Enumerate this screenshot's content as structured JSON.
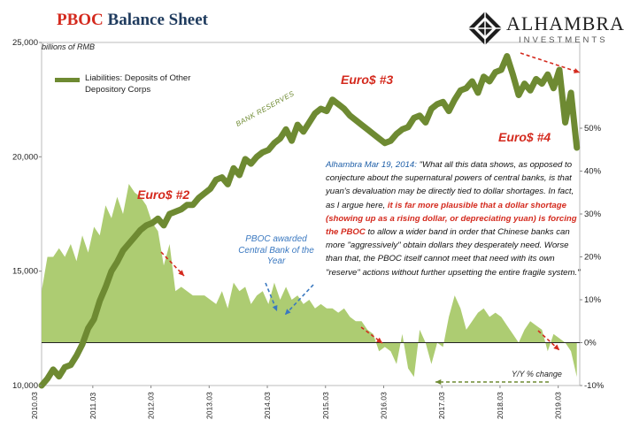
{
  "header": {
    "title_accent": "PBOC",
    "title_rest": " Balance Sheet",
    "logo_name": "ALHAMBRA",
    "logo_sub": "INVESTMENTS"
  },
  "chart_data": {
    "type": "line",
    "title": "PBOC Balance Sheet",
    "units": "billions of RMB",
    "left_axis": {
      "ylim": [
        10000,
        25000
      ],
      "ticks": [
        "10,000",
        "15,000",
        "20,000",
        "25,000"
      ]
    },
    "right_axis": {
      "label": "Y/Y % change",
      "ylim": [
        -10,
        70
      ],
      "ticks": [
        "-10%",
        "0%",
        "10%",
        "20%",
        "30%",
        "40%",
        "50%"
      ]
    },
    "x_ticks": [
      "2010.03",
      "2011.03",
      "2012.03",
      "2013.03",
      "2014.03",
      "2015.03",
      "2016.03",
      "2017.03",
      "2018.03",
      "2019.03"
    ],
    "x_range": [
      2010.0,
      2019.25
    ],
    "series": [
      {
        "name": "Liabilities: Deposits of Other Depository Corps",
        "axis": "left",
        "type": "line",
        "x": [
          2010.0,
          2010.1,
          2010.2,
          2010.3,
          2010.4,
          2010.5,
          2010.6,
          2010.7,
          2010.8,
          2010.9,
          2011.0,
          2011.1,
          2011.2,
          2011.3,
          2011.4,
          2011.5,
          2011.6,
          2011.7,
          2011.8,
          2011.9,
          2012.0,
          2012.1,
          2012.2,
          2012.3,
          2012.4,
          2012.5,
          2012.6,
          2012.7,
          2012.8,
          2012.9,
          2013.0,
          2013.1,
          2013.2,
          2013.3,
          2013.4,
          2013.5,
          2013.6,
          2013.7,
          2013.8,
          2013.9,
          2014.0,
          2014.1,
          2014.2,
          2014.3,
          2014.4,
          2014.5,
          2014.6,
          2014.7,
          2014.8,
          2014.9,
          2015.0,
          2015.1,
          2015.2,
          2015.3,
          2015.4,
          2015.5,
          2015.6,
          2015.7,
          2015.8,
          2015.9,
          2016.0,
          2016.1,
          2016.2,
          2016.3,
          2016.4,
          2016.5,
          2016.6,
          2016.7,
          2016.8,
          2016.9,
          2017.0,
          2017.1,
          2017.2,
          2017.3,
          2017.4,
          2017.5,
          2017.6,
          2017.7,
          2017.8,
          2017.9,
          2018.0,
          2018.1,
          2018.2,
          2018.3,
          2018.4,
          2018.5,
          2018.6,
          2018.7,
          2018.8,
          2018.9,
          2019.0,
          2019.1,
          2019.2
        ],
        "values": [
          10000,
          10300,
          10700,
          10400,
          10800,
          10900,
          11300,
          11800,
          12500,
          12900,
          13700,
          14300,
          15000,
          15400,
          15900,
          16200,
          16500,
          16800,
          17000,
          17100,
          17300,
          17000,
          17500,
          17600,
          17700,
          17900,
          17900,
          18200,
          18400,
          18600,
          19000,
          19100,
          18800,
          19500,
          19200,
          19900,
          19700,
          20000,
          20200,
          20300,
          20600,
          20800,
          21200,
          20700,
          21400,
          21100,
          21500,
          21900,
          22100,
          22000,
          22500,
          22300,
          22100,
          21800,
          21600,
          21400,
          21200,
          21000,
          20800,
          20600,
          20700,
          21000,
          21200,
          21300,
          21700,
          21800,
          21500,
          22100,
          22300,
          22400,
          22000,
          22500,
          22900,
          23000,
          23300,
          22800,
          23500,
          23300,
          23700,
          23800,
          24400,
          23600,
          22700,
          23200,
          22900,
          23400,
          23200,
          23600,
          23000,
          23800,
          21500,
          22800,
          20400
        ]
      },
      {
        "name": "Y/Y % change",
        "axis": "right",
        "type": "area",
        "x": [
          2010.0,
          2010.1,
          2010.2,
          2010.3,
          2010.4,
          2010.5,
          2010.6,
          2010.7,
          2010.8,
          2010.9,
          2011.0,
          2011.1,
          2011.2,
          2011.3,
          2011.4,
          2011.5,
          2011.6,
          2011.7,
          2011.8,
          2011.9,
          2012.0,
          2012.1,
          2012.2,
          2012.3,
          2012.4,
          2012.5,
          2012.6,
          2012.7,
          2012.8,
          2012.9,
          2013.0,
          2013.1,
          2013.2,
          2013.3,
          2013.4,
          2013.5,
          2013.6,
          2013.7,
          2013.8,
          2013.9,
          2014.0,
          2014.1,
          2014.2,
          2014.3,
          2014.4,
          2014.5,
          2014.6,
          2014.7,
          2014.8,
          2014.9,
          2015.0,
          2015.1,
          2015.2,
          2015.3,
          2015.4,
          2015.5,
          2015.6,
          2015.7,
          2015.8,
          2015.9,
          2016.0,
          2016.1,
          2016.2,
          2016.3,
          2016.4,
          2016.5,
          2016.6,
          2016.7,
          2016.8,
          2016.9,
          2017.0,
          2017.1,
          2017.2,
          2017.3,
          2017.4,
          2017.5,
          2017.6,
          2017.7,
          2017.8,
          2017.9,
          2018.0,
          2018.1,
          2018.2,
          2018.3,
          2018.4,
          2018.5,
          2018.6,
          2018.7,
          2018.8,
          2018.9,
          2019.0,
          2019.1,
          2019.2
        ],
        "values": [
          12,
          20,
          20,
          22,
          20,
          23,
          19,
          25,
          21,
          27,
          25,
          32,
          29,
          34,
          30,
          37,
          35,
          34,
          32,
          28,
          26,
          18,
          23,
          12,
          13,
          12,
          11,
          11,
          11,
          10,
          9,
          12,
          8,
          14,
          12,
          13,
          9,
          11,
          12,
          9,
          14,
          10,
          13,
          10,
          11,
          9,
          10,
          8,
          9,
          8,
          8,
          7,
          8,
          6,
          5,
          5,
          3,
          2,
          -2,
          -1,
          -2,
          -5,
          2,
          -6,
          -8,
          3,
          0,
          -5,
          0,
          -1,
          6,
          11,
          8,
          3,
          5,
          7,
          8,
          6,
          7,
          6,
          4,
          2,
          0,
          3,
          5,
          4,
          3,
          -2,
          2,
          1,
          0,
          -2,
          -8
        ]
      }
    ],
    "legend": [
      "Liabilities: Deposits of Other Depository Corps"
    ],
    "annotations": {
      "euro2": "Euro$ #2",
      "euro3": "Euro$ #3",
      "euro4": "Euro$ #4",
      "bank_reserves": "BANK RESERVES",
      "callout": "PBOC awarded Central Bank of the Year",
      "quote_source": "Alhambra Mar 19, 2014:",
      "quote_part1": " \"What all this data shows, as opposed to conjecture about the supernatural powers of central banks, is that yuan's devaluation may be directly tied to dollar shortages. In fact, as I argue here, ",
      "quote_highlight": "it is far more plausible that a dollar shortage (showing up as a rising dollar, or depreciating  yuan) is forcing the PBOC",
      "quote_part2": " to allow a wider band in order that Chinese banks can more \"aggressively\" obtain dollars they desperately need. Worse than that, the PBOC itself cannot meet that need with its own \"reserve\" actions without further upsetting the entire fragile system.\""
    }
  },
  "colors": {
    "line": "#6e8a32",
    "area": "#a9c96a",
    "accent": "#d42a1e",
    "callout": "#3a78c0",
    "title": "#1f3b5e"
  }
}
